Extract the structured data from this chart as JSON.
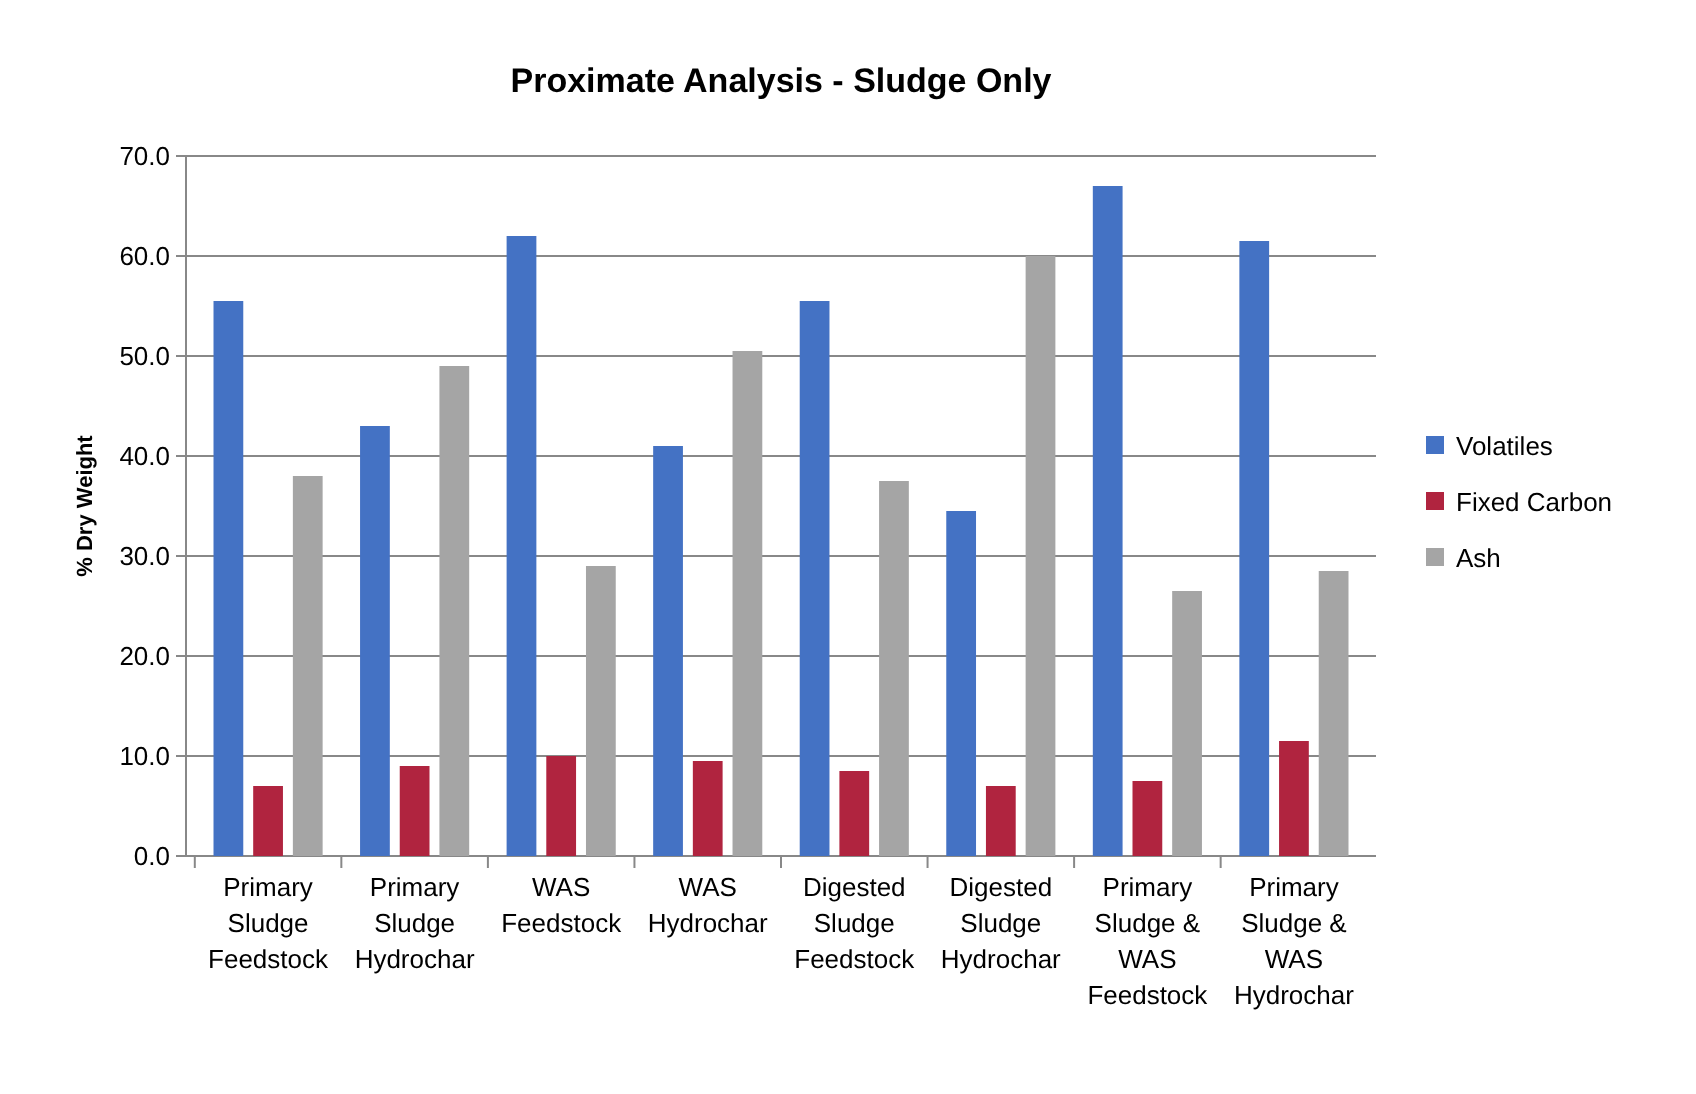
{
  "chart_data": {
    "type": "bar",
    "title": "Proximate Analysis - Sludge Only",
    "ylabel": "% Dry Weight",
    "categories": [
      "Primary\nSludge\nFeedstock",
      "Primary\nSludge\nHydrochar",
      "WAS\nFeedstock",
      "WAS\nHydrochar",
      "Digested\nSludge\nFeedstock",
      "Digested\nSludge\nHydrochar",
      "Primary\nSludge &\nWAS\nFeedstock",
      "Primary\nSludge &\nWAS\nHydrochar"
    ],
    "series": [
      {
        "name": "Volatiles",
        "color": "#4472c4",
        "values": [
          55.5,
          43,
          62,
          41,
          55.5,
          34.5,
          67,
          61.5
        ]
      },
      {
        "name": "Fixed Carbon",
        "color": "#b0243f",
        "values": [
          7,
          9,
          10,
          9.5,
          8.5,
          7,
          7.5,
          11.5
        ]
      },
      {
        "name": "Ash",
        "color": "#a5a5a5",
        "values": [
          38,
          49,
          29,
          50.5,
          37.5,
          60,
          26.5,
          28.5
        ]
      }
    ],
    "ylim": [
      0,
      70
    ],
    "yticks": [
      {
        "value": 0,
        "label": "0.0"
      },
      {
        "value": 10,
        "label": "10.0"
      },
      {
        "value": 20,
        "label": "20.0"
      },
      {
        "value": 30,
        "label": "30.0"
      },
      {
        "value": 40,
        "label": "40.0"
      },
      {
        "value": 50,
        "label": "50.0"
      },
      {
        "value": 60,
        "label": "60.0"
      },
      {
        "value": 70,
        "label": "70.0"
      }
    ],
    "grid": "y",
    "legend": "right"
  }
}
